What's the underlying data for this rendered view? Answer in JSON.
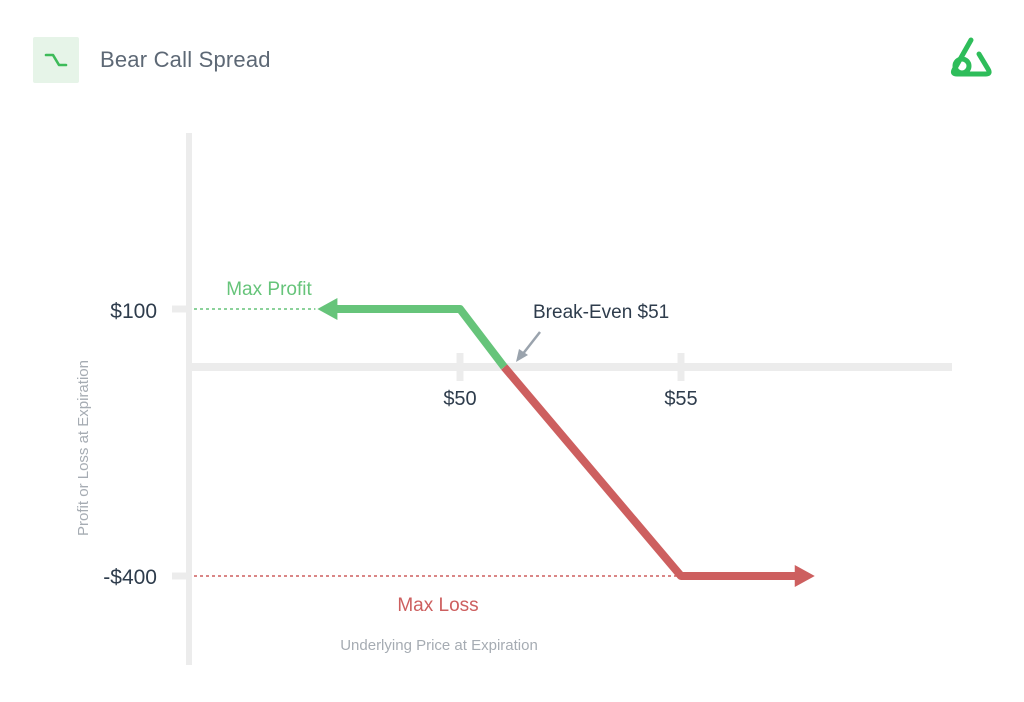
{
  "header": {
    "title": "Bear Call Spread",
    "badge_icon": "bear-call-spread-icon",
    "logo_icon": "brand-logo-icon"
  },
  "colors": {
    "profit": "#66c47a",
    "loss": "#cd5f5f",
    "axis": "#ececec",
    "text_dark": "#2e3c4c",
    "text_muted": "#a6acb3",
    "arrow": "#9aa3ad",
    "brand": "#2ebd5a"
  },
  "chart_data": {
    "type": "line",
    "title": "",
    "xlabel": "Underlying Price at Expiration",
    "ylabel": "Profit or Loss at Expiration",
    "x_ticks": [
      {
        "value": 50,
        "label": "$50"
      },
      {
        "value": 55,
        "label": "$55"
      }
    ],
    "y_ticks": [
      {
        "value": 100,
        "label": "$100"
      },
      {
        "value": -400,
        "label": "-$400"
      }
    ],
    "series": [
      {
        "segment": "profit",
        "points": [
          [
            47,
            100
          ],
          [
            50,
            100
          ],
          [
            51,
            0
          ]
        ]
      },
      {
        "segment": "loss",
        "points": [
          [
            51,
            0
          ],
          [
            55,
            -400
          ],
          [
            57.8,
            -400
          ]
        ]
      }
    ],
    "annotations": {
      "max_profit": "Max Profit",
      "max_loss": "Max Loss",
      "break_even": "Break-Even $51",
      "break_even_value": 51
    },
    "grid": false,
    "legend": "none"
  }
}
